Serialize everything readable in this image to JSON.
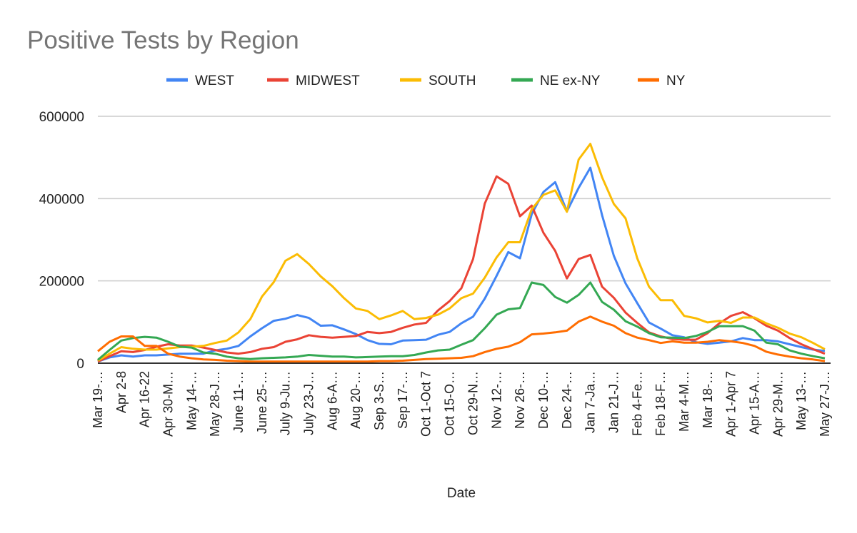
{
  "chart_data": {
    "type": "line",
    "title": "Positive Tests by Region",
    "xlabel": "Date",
    "ylabel": "",
    "ylim": [
      0,
      600000
    ],
    "yticks": [
      "0",
      "200000",
      "400000",
      "600000"
    ],
    "ytick_values": [
      0,
      200000,
      400000,
      600000
    ],
    "grid": true,
    "legend_position": "top",
    "x_tick_every": 2,
    "x_tick_labels": [
      "Mar 19-…",
      "Apr 2-8",
      "Apr 16-22",
      "Apr 30-M…",
      "May 14-…",
      "May 28-J…",
      "June 11-…",
      "June 25-…",
      "July 9-Ju…",
      "July 23-J…",
      "Aug 6-A…",
      "Aug 20-…",
      "Sep 3-S…",
      "Sep 17-…",
      "Oct 1-Oct 7",
      "Oct 15-O…",
      "Oct 29-N…",
      "Nov 12-…",
      "Nov 26-…",
      "Dec 10-…",
      "Dec 24-…",
      "Jan 7-Ja…",
      "Jan 21-J…",
      "Feb 4-Fe…",
      "Feb 18-F…",
      "Mar 4-M…",
      "Mar 18-…",
      "Apr 1-Apr 7",
      "Apr 15-A…",
      "Apr 29-M…",
      "May 13-…",
      "May 27-J…"
    ],
    "series": [
      {
        "name": "WEST",
        "color": "#4285F4",
        "values": [
          4000,
          14000,
          19000,
          16000,
          19000,
          19000,
          21000,
          23000,
          23000,
          23000,
          31000,
          35000,
          42000,
          65000,
          85000,
          103000,
          108000,
          117000,
          110000,
          91000,
          92000,
          82000,
          71000,
          56000,
          47000,
          46000,
          55000,
          56000,
          57000,
          69000,
          76000,
          97000,
          113000,
          157000,
          212000,
          270000,
          255000,
          362000,
          416000,
          440000,
          369000,
          426000,
          475000,
          360000,
          261000,
          194000,
          146000,
          99000,
          84000,
          68000,
          63000,
          51000,
          47000,
          50000,
          53000,
          61000,
          56000,
          56000,
          53000,
          46000,
          39000,
          33000,
          30000
        ]
      },
      {
        "name": "MIDWEST",
        "color": "#EA4335",
        "values": [
          4000,
          17000,
          29000,
          27000,
          32000,
          40000,
          46000,
          43000,
          43000,
          38000,
          32000,
          26000,
          23000,
          27000,
          35000,
          39000,
          52000,
          58000,
          68000,
          64000,
          62000,
          64000,
          66000,
          76000,
          73000,
          76000,
          86000,
          94000,
          98000,
          128000,
          151000,
          182000,
          253000,
          388000,
          454000,
          436000,
          357000,
          383000,
          317000,
          273000,
          206000,
          253000,
          263000,
          186000,
          159000,
          123000,
          98000,
          75000,
          65000,
          59000,
          57000,
          57000,
          73000,
          97000,
          115000,
          124000,
          109000,
          91000,
          79000,
          61000,
          46000,
          34000,
          23000
        ]
      },
      {
        "name": "SOUTH",
        "color": "#FBBC04",
        "values": [
          6000,
          23000,
          39000,
          35000,
          33000,
          33000,
          36000,
          39000,
          40000,
          42000,
          49000,
          55000,
          75000,
          107000,
          162000,
          197000,
          249000,
          265000,
          241000,
          211000,
          187000,
          158000,
          133000,
          127000,
          107000,
          116000,
          127000,
          107000,
          110000,
          118000,
          133000,
          158000,
          169000,
          208000,
          257000,
          294000,
          294000,
          374000,
          409000,
          420000,
          368000,
          495000,
          533000,
          452000,
          387000,
          352000,
          255000,
          186000,
          153000,
          153000,
          115000,
          109000,
          99000,
          103000,
          98000,
          111000,
          111000,
          97000,
          86000,
          72000,
          63000,
          49000,
          34000
        ]
      },
      {
        "name": "NE ex-NY",
        "color": "#34A853",
        "values": [
          8000,
          32000,
          55000,
          61000,
          64000,
          62000,
          52000,
          40000,
          38000,
          26000,
          23000,
          16000,
          12000,
          10000,
          12000,
          13000,
          14000,
          16000,
          20000,
          18000,
          16000,
          16000,
          14000,
          15000,
          16000,
          17000,
          17000,
          20000,
          26000,
          31000,
          33000,
          45000,
          56000,
          85000,
          118000,
          131000,
          134000,
          196000,
          190000,
          161000,
          147000,
          166000,
          196000,
          149000,
          130000,
          102000,
          89000,
          73000,
          63000,
          62000,
          61000,
          66000,
          76000,
          90000,
          90000,
          90000,
          79000,
          50000,
          46000,
          31000,
          23000,
          17000,
          12000
        ]
      },
      {
        "name": "NY",
        "color": "#FF6D01",
        "values": [
          29000,
          52000,
          65000,
          65000,
          42000,
          42000,
          23000,
          16000,
          12000,
          9000,
          8000,
          6000,
          5000,
          4000,
          4000,
          4000,
          4000,
          4000,
          4000,
          4000,
          4000,
          4000,
          4000,
          4000,
          5000,
          5000,
          6000,
          8000,
          10000,
          11000,
          12000,
          13000,
          17000,
          27000,
          35000,
          40000,
          51000,
          70000,
          72000,
          75000,
          79000,
          101000,
          113000,
          101000,
          91000,
          73000,
          62000,
          56000,
          49000,
          53000,
          50000,
          50000,
          52000,
          56000,
          53000,
          49000,
          42000,
          28000,
          21000,
          16000,
          12000,
          9000,
          5000
        ]
      }
    ]
  }
}
